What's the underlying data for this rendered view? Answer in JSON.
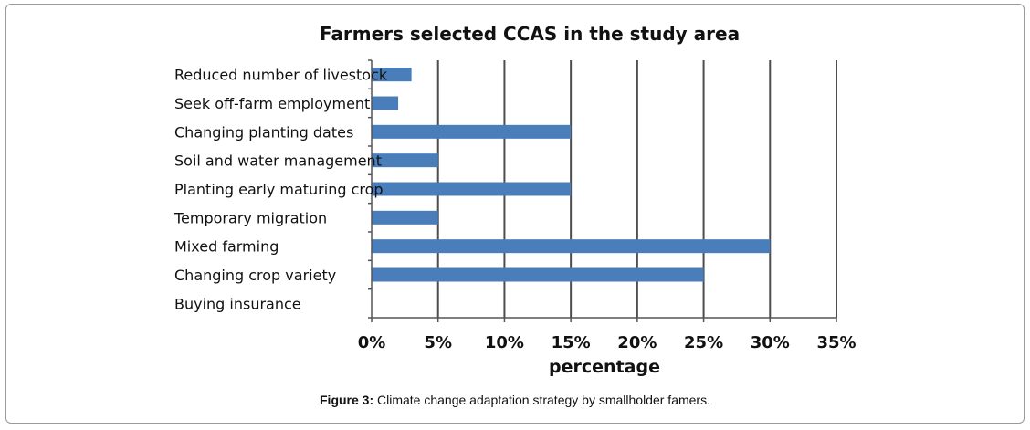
{
  "chart_data": {
    "type": "bar",
    "orientation": "horizontal",
    "title": "Farmers selected CCAS in the study area",
    "xlabel": "percentage",
    "ylabel": "",
    "categories": [
      "Reduced number of livestock",
      "Seek off-farm employment",
      "Changing planting dates",
      "Soil and water management",
      "Planting early maturing crop",
      "Temporary migration",
      "Mixed farming",
      "Changing crop variety",
      "Buying insurance"
    ],
    "values": [
      3,
      2,
      15,
      5,
      15,
      5,
      30,
      25,
      0
    ],
    "xlim": [
      0,
      35
    ],
    "xticks": [
      "0%",
      "5%",
      "10%",
      "15%",
      "20%",
      "25%",
      "30%",
      "35%"
    ],
    "grid": "vertical",
    "bar_color": "#4a7ebb",
    "grid_color": "#4d4d4d"
  },
  "caption": {
    "label": "Figure 3:",
    "text": " Climate change adaptation strategy by smallholder famers."
  }
}
